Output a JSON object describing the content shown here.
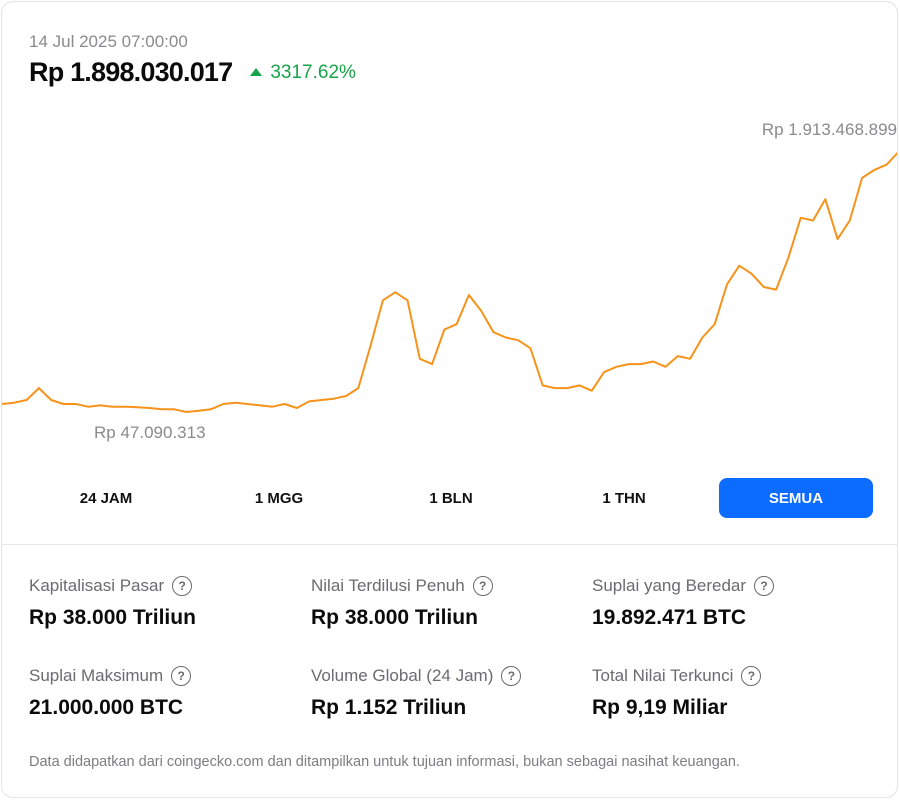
{
  "header": {
    "timestamp": "14 Jul 2025 07:00:00",
    "price": "Rp 1.898.030.017",
    "change": "3317.62%",
    "change_icon": "triangle-up-icon"
  },
  "chart": {
    "high_label": "Rp 1.913.468.899",
    "low_label": "Rp 47.090.313",
    "line_color": "#f7931a"
  },
  "chart_data": {
    "type": "line",
    "title": "",
    "xlabel": "",
    "ylabel": "",
    "min_value": 47090313,
    "max_value": 1913468899,
    "series": [
      {
        "values": [
          0.03,
          0.035,
          0.045,
          0.09,
          0.045,
          0.03,
          0.03,
          0.02,
          0.025,
          0.02,
          0.02,
          0.018,
          0.015,
          0.01,
          0.01,
          0.0,
          0.005,
          0.01,
          0.03,
          0.035,
          0.03,
          0.025,
          0.02,
          0.03,
          0.015,
          0.04,
          0.045,
          0.05,
          0.06,
          0.09,
          0.25,
          0.42,
          0.45,
          0.42,
          0.2,
          0.18,
          0.31,
          0.33,
          0.44,
          0.38,
          0.3,
          0.28,
          0.27,
          0.24,
          0.1,
          0.09,
          0.09,
          0.1,
          0.08,
          0.15,
          0.17,
          0.18,
          0.18,
          0.19,
          0.17,
          0.21,
          0.2,
          0.28,
          0.33,
          0.48,
          0.55,
          0.52,
          0.47,
          0.46,
          0.58,
          0.73,
          0.72,
          0.8,
          0.65,
          0.72,
          0.88,
          0.91,
          0.93,
          0.98
        ]
      }
    ]
  },
  "range_tabs": [
    {
      "label": "24 JAM"
    },
    {
      "label": "1 MGG"
    },
    {
      "label": "1 BLN"
    },
    {
      "label": "1 THN"
    },
    {
      "label": "SEMUA",
      "active": true
    }
  ],
  "stats": [
    {
      "label": "Kapitalisasi Pasar",
      "value": "Rp 38.000 Triliun"
    },
    {
      "label": "Nilai Terdilusi Penuh",
      "value": "Rp 38.000 Triliun"
    },
    {
      "label": "Suplai yang Beredar",
      "value": "19.892.471 BTC"
    },
    {
      "label": "Suplai Maksimum",
      "value": "21.000.000 BTC"
    },
    {
      "label": "Volume Global (24 Jam)",
      "value": "Rp 1.152 Triliun"
    },
    {
      "label": "Total Nilai Terkunci",
      "value": "Rp 9,19 Miliar"
    }
  ],
  "help_glyph": "?",
  "footnote": "Data didapatkan dari coingecko.com dan ditampilkan untuk tujuan informasi, bukan sebagai nasihat keuangan.",
  "colors": {
    "accent": "#0b6cff",
    "positive": "#16a34a",
    "line": "#f7931a"
  }
}
